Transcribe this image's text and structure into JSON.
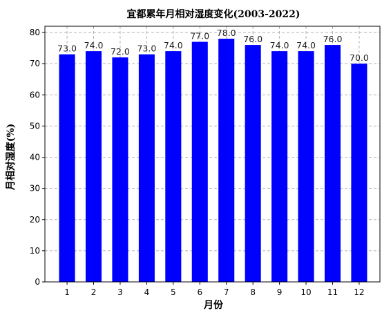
{
  "chart_data": {
    "type": "bar",
    "title": "宜都累年月相对湿度变化(2003-2022)",
    "xlabel": "月份",
    "ylabel": "月相对湿度(%)",
    "categories": [
      "1",
      "2",
      "3",
      "4",
      "5",
      "6",
      "7",
      "8",
      "9",
      "10",
      "11",
      "12"
    ],
    "values": [
      73.0,
      74.0,
      72.0,
      73.0,
      74.0,
      77.0,
      78.0,
      76.0,
      74.0,
      74.0,
      76.0,
      70.0
    ],
    "value_labels": [
      "73.0",
      "74.0",
      "72.0",
      "73.0",
      "74.0",
      "77.0",
      "78.0",
      "76.0",
      "74.0",
      "74.0",
      "76.0",
      "70.0"
    ],
    "ylim": [
      0,
      82
    ],
    "yticks": [
      0,
      10,
      20,
      30,
      40,
      50,
      60,
      70,
      80
    ],
    "bar_color": "#0000ff",
    "grid": true
  }
}
